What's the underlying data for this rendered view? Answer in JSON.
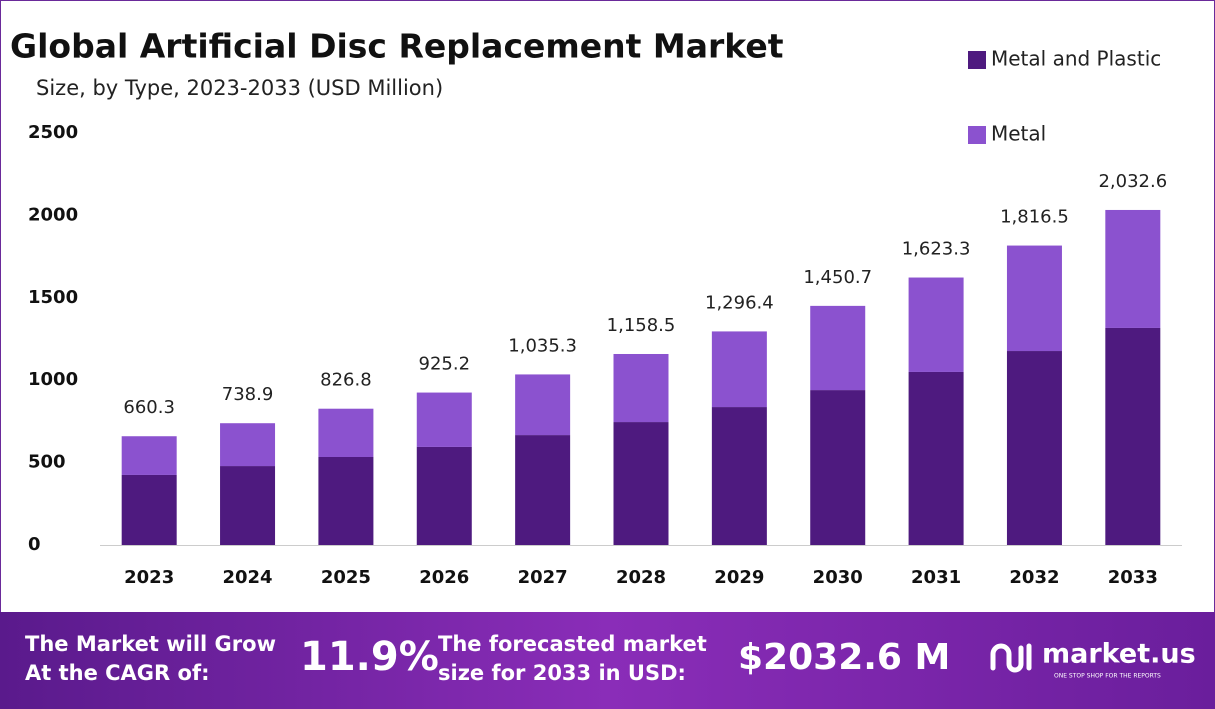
{
  "chart_data": {
    "type": "bar",
    "stacked": true,
    "title": "Global Artificial Disc Replacement Market",
    "subtitle": "Size, by Type, 2023-2033 (USD Million)",
    "categories": [
      "2023",
      "2024",
      "2025",
      "2026",
      "2027",
      "2028",
      "2029",
      "2030",
      "2031",
      "2032",
      "2033"
    ],
    "series": [
      {
        "name": "Metal and Plastic",
        "color": "#4e1a7f",
        "values": [
          425,
          479,
          534,
          595,
          667,
          746,
          837,
          940,
          1050,
          1177,
          1317
        ]
      },
      {
        "name": "Metal",
        "color": "#8b52cf",
        "values": [
          235,
          260,
          293,
          330,
          368,
          413,
          459,
          511,
          573,
          640,
          716
        ]
      }
    ],
    "totals": {
      "values": [
        660.3,
        738.9,
        826.8,
        925.2,
        1035.3,
        1158.5,
        1296.4,
        1450.7,
        1623.3,
        1816.5,
        2032.6
      ],
      "value_labels": [
        "660.3",
        "738.9",
        "826.8",
        "925.2",
        "1,035.3",
        "1,158.5",
        "1,296.4",
        "1,450.7",
        "1,623.3",
        "1,816.5",
        "2,032.6"
      ]
    },
    "ylim": [
      0,
      2500
    ],
    "yticks": [
      0,
      500,
      1000,
      1500,
      2000,
      2500
    ],
    "grid": false,
    "legend": "top-right"
  },
  "footer": {
    "cagr_text": [
      "The Market will Grow",
      "At the CAGR of:"
    ],
    "cagr": "11.9%",
    "forecast_text": [
      "The forecasted market",
      "size for 2033 in USD:"
    ],
    "forecast": "$2032.6 M",
    "brand": "market.us",
    "tagline": "ONE STOP SHOP FOR THE REPORTS"
  }
}
